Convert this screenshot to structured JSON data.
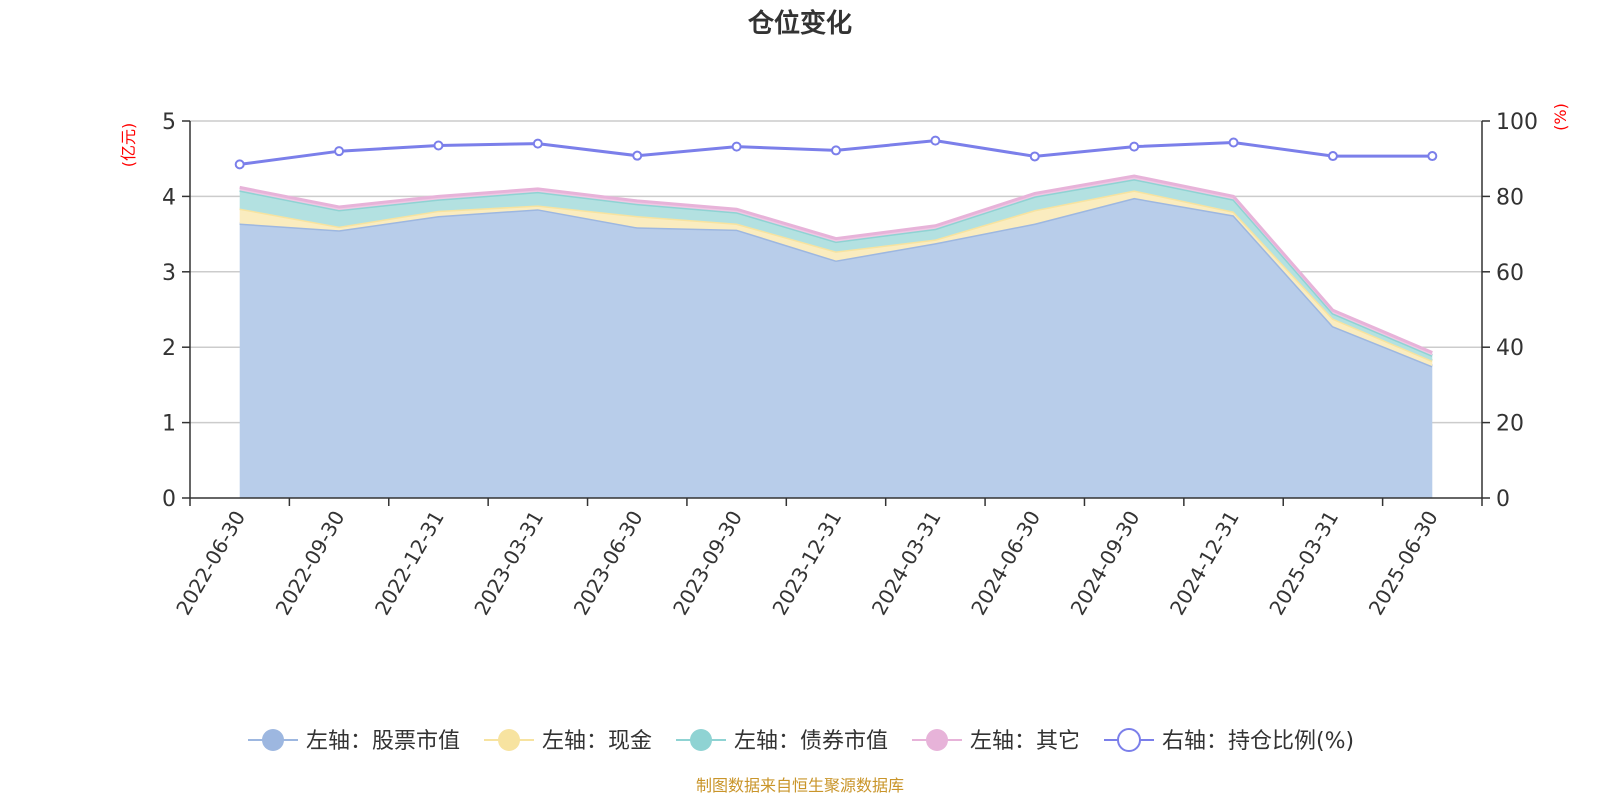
{
  "chart_data": {
    "type": "area",
    "title": "仓位变化",
    "x": [
      "2022-06-30",
      "2022-09-30",
      "2022-12-31",
      "2023-03-31",
      "2023-06-30",
      "2023-09-30",
      "2023-12-31",
      "2024-03-31",
      "2024-06-30",
      "2024-09-30",
      "2024-12-31",
      "2025-03-31",
      "2025-06-30"
    ],
    "left_axis": {
      "unit": "(亿元)",
      "ylim": [
        0,
        5
      ],
      "ticks": [
        "0",
        "1",
        "2",
        "3",
        "4",
        "5"
      ]
    },
    "right_axis": {
      "unit": "(%)",
      "ylim": [
        0,
        100
      ],
      "ticks": [
        "0",
        "20",
        "40",
        "60",
        "80",
        "100"
      ]
    },
    "stacked": true,
    "series": [
      {
        "name": "左轴：股票市值",
        "axis": "left",
        "color": "#9db7e0",
        "fill": "#b8cdea",
        "values": [
          3.64,
          3.55,
          3.74,
          3.83,
          3.59,
          3.56,
          3.15,
          3.38,
          3.64,
          3.98,
          3.75,
          2.28,
          1.75
        ]
      },
      {
        "name": "左轴：现金",
        "axis": "left",
        "color": "#f7e3a0",
        "fill": "#faecbf",
        "values": [
          0.2,
          0.05,
          0.07,
          0.05,
          0.15,
          0.08,
          0.12,
          0.05,
          0.18,
          0.1,
          0.05,
          0.1,
          0.07
        ]
      },
      {
        "name": "左轴：债券市值",
        "axis": "left",
        "color": "#8fd3d3",
        "fill": "#b3e1e1",
        "values": [
          0.24,
          0.22,
          0.15,
          0.18,
          0.16,
          0.15,
          0.13,
          0.14,
          0.18,
          0.15,
          0.16,
          0.07,
          0.07
        ]
      },
      {
        "name": "左轴：其它",
        "axis": "left",
        "color": "#e7b3d9",
        "fill": "#efc8e4",
        "values": [
          0.04,
          0.04,
          0.04,
          0.04,
          0.04,
          0.04,
          0.04,
          0.04,
          0.04,
          0.04,
          0.04,
          0.04,
          0.04
        ]
      },
      {
        "name": "右轴：持仓比例(%)",
        "axis": "right",
        "type": "line",
        "color": "#7b7fea",
        "values": [
          88.5,
          92.0,
          93.5,
          94.0,
          90.8,
          93.2,
          92.2,
          94.8,
          90.6,
          93.2,
          94.3,
          90.7,
          90.7
        ]
      }
    ],
    "grid": true,
    "legend": "bottom-center"
  },
  "footer": {
    "source": "制图数据来自恒生聚源数据库"
  }
}
